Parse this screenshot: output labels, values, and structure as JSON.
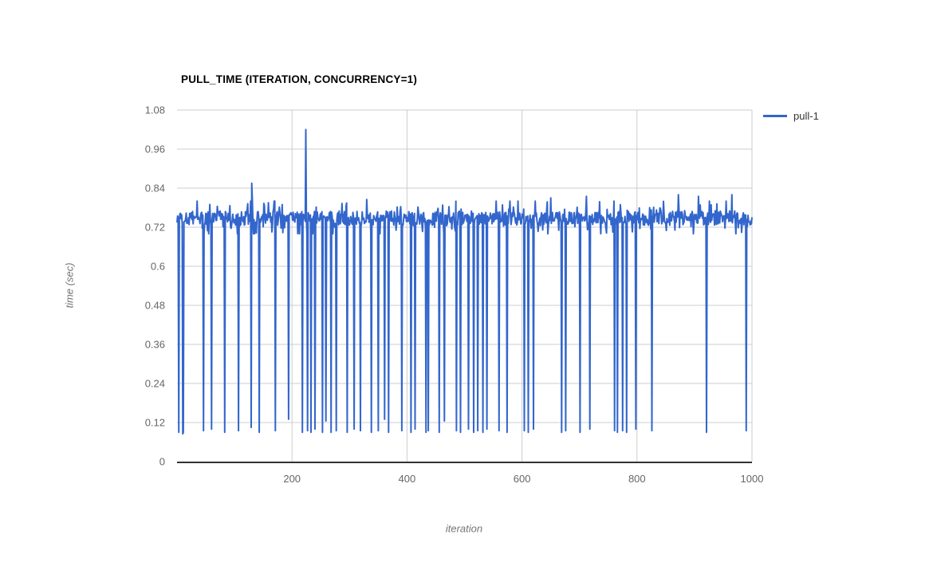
{
  "page": {
    "background": "#ffffff"
  },
  "chart_data": {
    "type": "line",
    "title": "PULL_TIME (ITERATION, CONCURRENCY=1)",
    "xlabel": "iteration",
    "ylabel": "time (sec)",
    "xlim": [
      0,
      1000
    ],
    "ylim": [
      0,
      1.08
    ],
    "x_ticks": [
      200,
      400,
      600,
      800,
      1000
    ],
    "y_ticks": [
      0,
      0.12,
      0.24,
      0.36,
      0.48,
      0.6,
      0.72,
      0.84,
      0.96,
      1.08
    ],
    "grid": true,
    "legend": {
      "position": "right",
      "entries": [
        {
          "label": "pull-1",
          "color": "#3366cc"
        }
      ]
    },
    "colors": {
      "line": "#3366cc",
      "grid": "#cccccc",
      "axis": "#333333",
      "tick_label": "#666666",
      "axis_title": "#757575",
      "title_text": "#000000",
      "legend_text": "#333333"
    },
    "series": [
      {
        "name": "pull-1",
        "color": "#3366cc",
        "points_count": 1000,
        "baseline": {
          "mean": 0.748,
          "jitter": 0.022,
          "typical_min": 0.7,
          "typical_max": 0.8
        },
        "noise_seed": 1337,
        "peaks": [
          [
            35,
            0.8
          ],
          [
            330,
            0.805
          ],
          [
            555,
            0.8
          ],
          [
            650,
            0.81
          ],
          [
            712,
            0.815
          ],
          [
            760,
            0.8
          ],
          [
            872,
            0.82
          ],
          [
            907,
            0.815
          ],
          [
            965,
            0.82
          ]
        ],
        "spikes": [
          [
            130,
            0.855
          ],
          [
            224,
            1.02
          ]
        ],
        "dips": [
          [
            3,
            0.09
          ],
          [
            10,
            0.085
          ],
          [
            11,
            0.09
          ],
          [
            46,
            0.095
          ],
          [
            60,
            0.1
          ],
          [
            83,
            0.09
          ],
          [
            107,
            0.095
          ],
          [
            129,
            0.105
          ],
          [
            143,
            0.09
          ],
          [
            171,
            0.095
          ],
          [
            194,
            0.13
          ],
          [
            218,
            0.09
          ],
          [
            227,
            0.095
          ],
          [
            233,
            0.09
          ],
          [
            240,
            0.1
          ],
          [
            253,
            0.09
          ],
          [
            259,
            0.125
          ],
          [
            268,
            0.09
          ],
          [
            277,
            0.095
          ],
          [
            296,
            0.09
          ],
          [
            308,
            0.1
          ],
          [
            319,
            0.095
          ],
          [
            338,
            0.09
          ],
          [
            350,
            0.095
          ],
          [
            361,
            0.13
          ],
          [
            368,
            0.09
          ],
          [
            391,
            0.095
          ],
          [
            407,
            0.09
          ],
          [
            414,
            0.1
          ],
          [
            433,
            0.09
          ],
          [
            437,
            0.095
          ],
          [
            456,
            0.09
          ],
          [
            465,
            0.125
          ],
          [
            486,
            0.095
          ],
          [
            493,
            0.09
          ],
          [
            507,
            0.1
          ],
          [
            516,
            0.09
          ],
          [
            523,
            0.095
          ],
          [
            532,
            0.09
          ],
          [
            539,
            0.1
          ],
          [
            560,
            0.095
          ],
          [
            574,
            0.09
          ],
          [
            604,
            0.095
          ],
          [
            611,
            0.09
          ],
          [
            620,
            0.1
          ],
          [
            669,
            0.09
          ],
          [
            676,
            0.095
          ],
          [
            701,
            0.09
          ],
          [
            718,
            0.1
          ],
          [
            761,
            0.095
          ],
          [
            766,
            0.09
          ],
          [
            775,
            0.095
          ],
          [
            782,
            0.09
          ],
          [
            798,
            0.1
          ],
          [
            826,
            0.095
          ],
          [
            921,
            0.09
          ],
          [
            990,
            0.095
          ]
        ]
      }
    ]
  }
}
